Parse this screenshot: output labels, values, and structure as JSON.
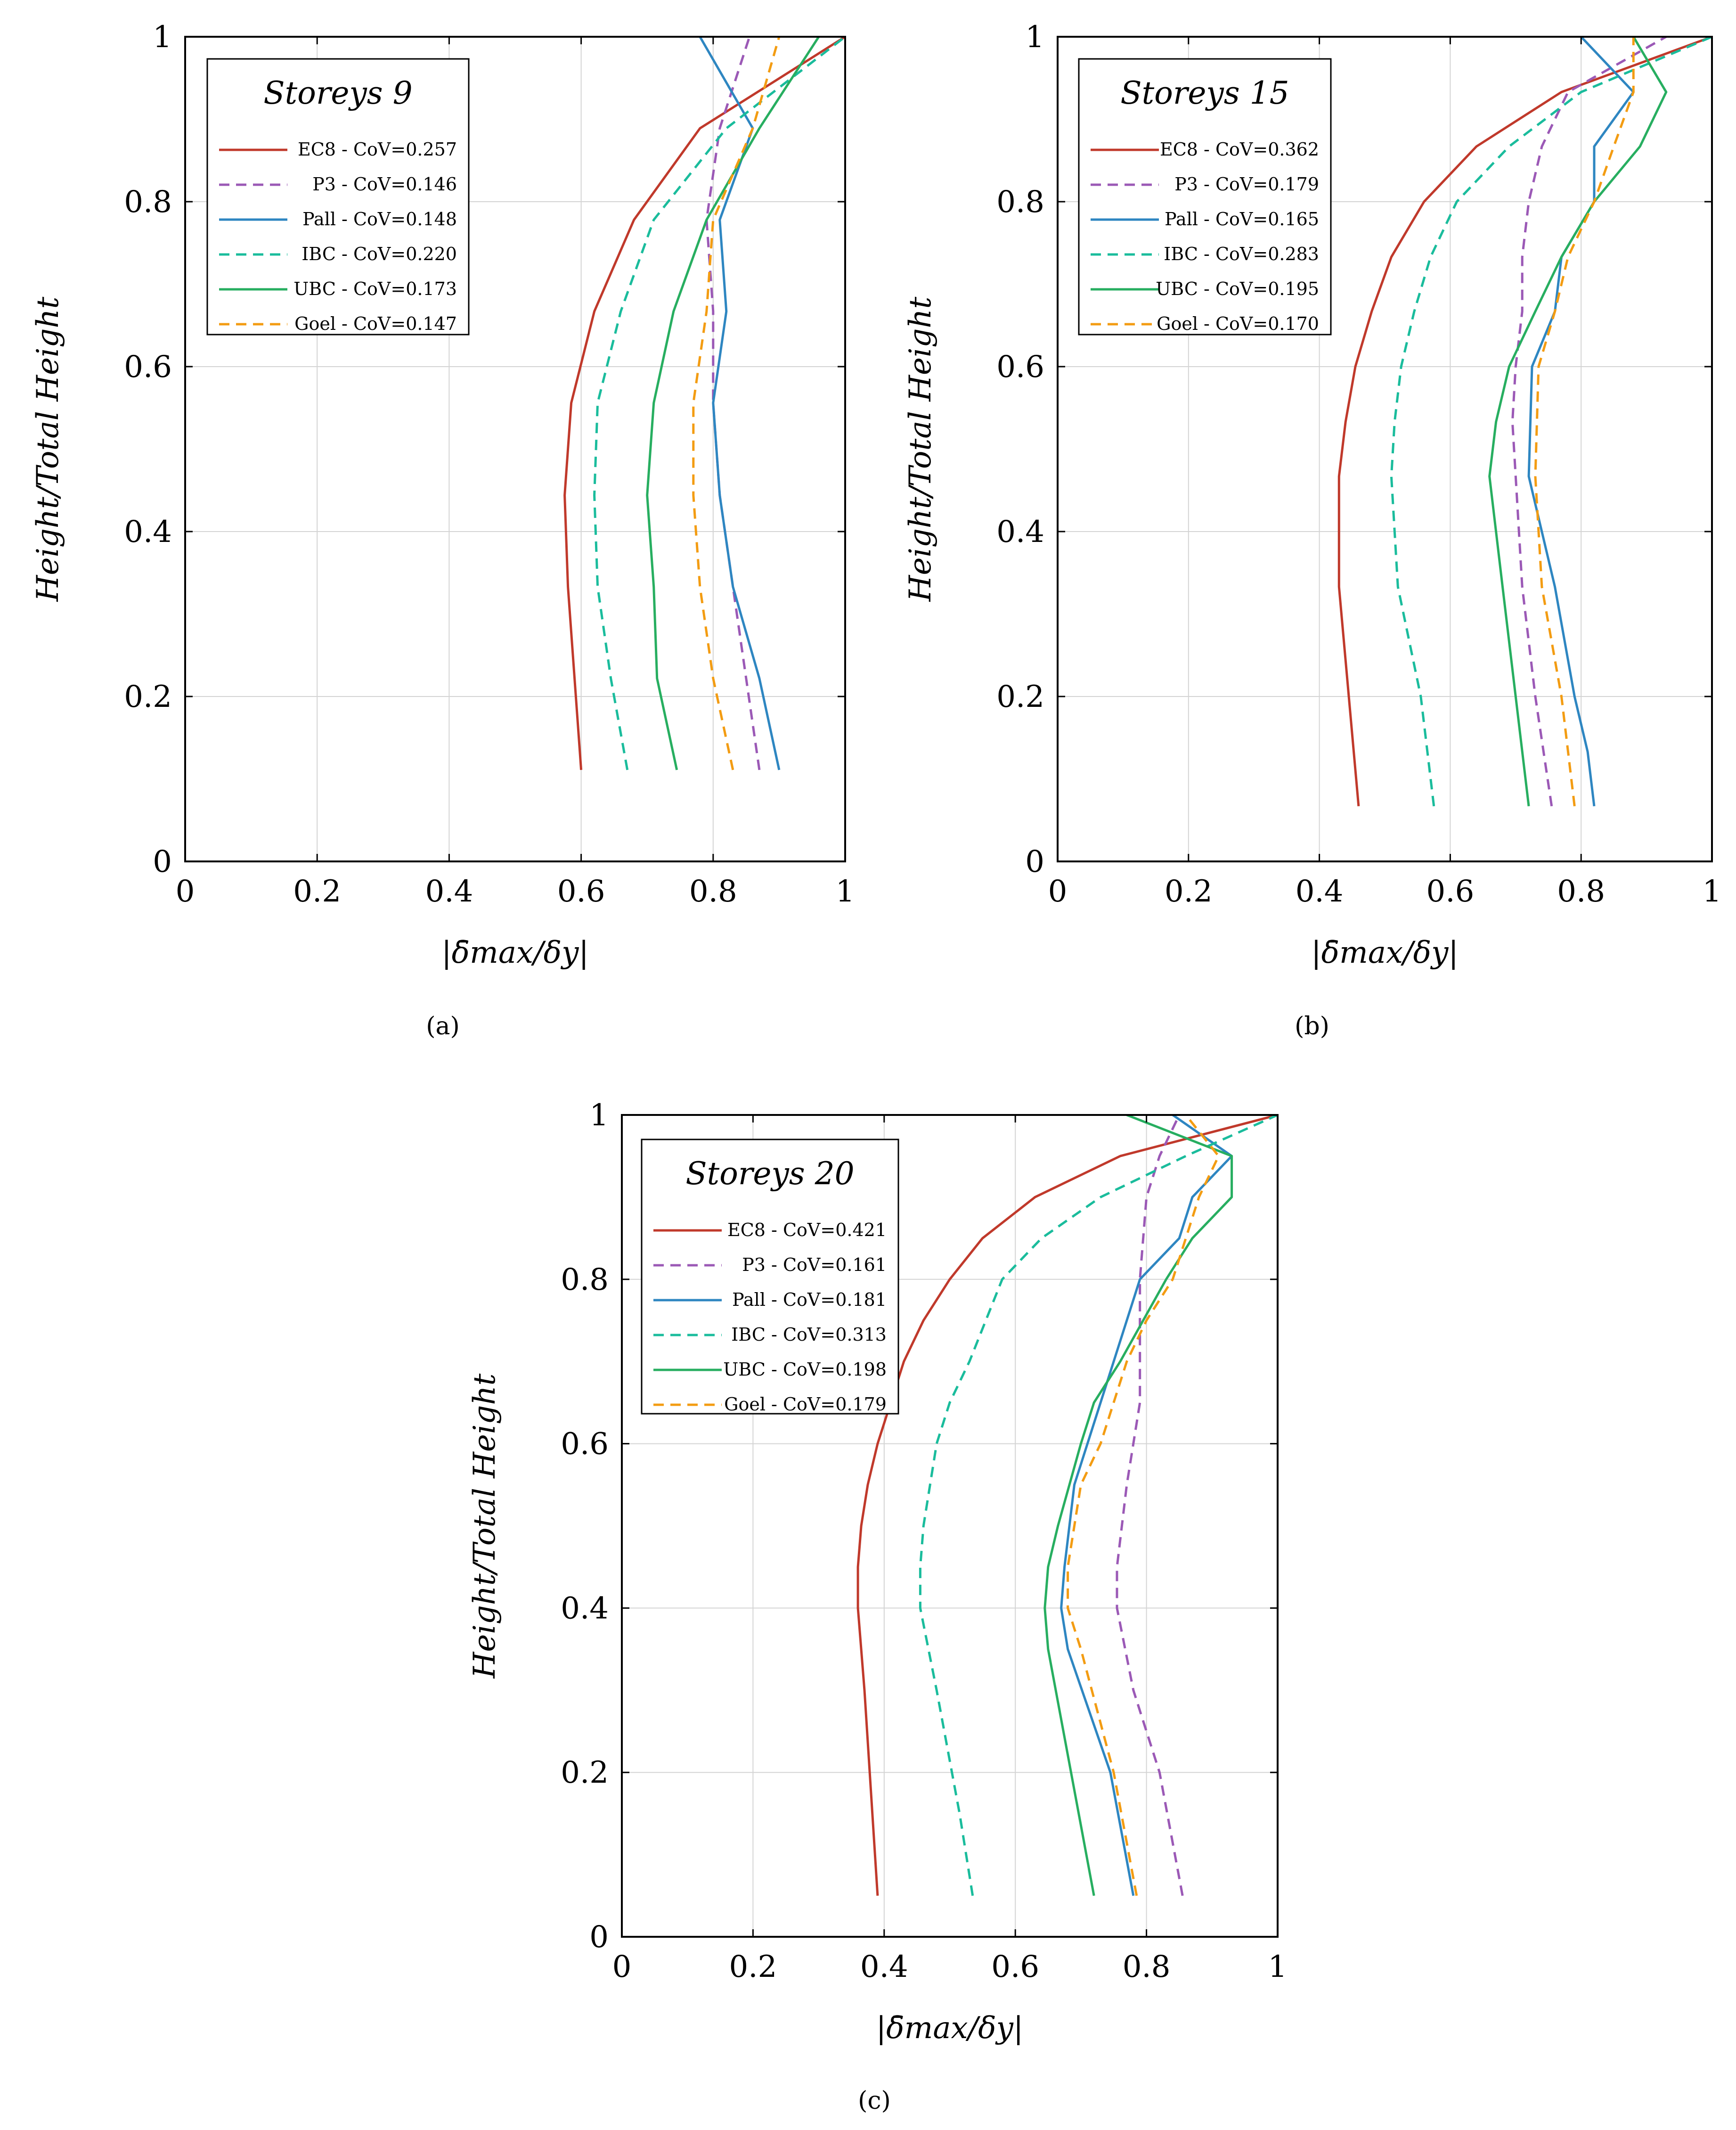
{
  "figure": {
    "y_axis_label": "Height/Total Height",
    "x_axis_label": "|δ̄max/δy|",
    "styles": {
      "EC8": {
        "color": "#c0392b",
        "dash": "solid"
      },
      "P3": {
        "color": "#9b59b6",
        "dash": "dashed"
      },
      "Pall": {
        "color": "#2e86c1",
        "dash": "solid"
      },
      "IBC": {
        "color": "#1abc9c",
        "dash": "dashed"
      },
      "UBC": {
        "color": "#27ae60",
        "dash": "solid"
      },
      "Goel": {
        "color": "#f39c12",
        "dash": "dashed"
      }
    }
  },
  "chart_data": [
    {
      "type": "line",
      "caption": "(a)",
      "title": "Storeys 9",
      "xlabel": "|δ̄max/δy|",
      "ylabel": "Height/Total Height",
      "xlim": [
        0,
        1
      ],
      "ylim": [
        0,
        1
      ],
      "xticks": [
        "0",
        "0.2",
        "0.4",
        "0.6",
        "0.8",
        "1"
      ],
      "yticks": [
        "0",
        "0.2",
        "0.4",
        "0.6",
        "0.8",
        "1"
      ],
      "grid": true,
      "legend": "top-left",
      "series": [
        {
          "key": "EC8",
          "name": "EC8 - CoV=0.257",
          "points": [
            [
              0.6,
              0.111
            ],
            [
              0.58,
              0.333
            ],
            [
              0.575,
              0.444
            ],
            [
              0.585,
              0.556
            ],
            [
              0.62,
              0.667
            ],
            [
              0.68,
              0.778
            ],
            [
              0.78,
              0.889
            ],
            [
              1.0,
              1.0
            ]
          ]
        },
        {
          "key": "P3",
          "name": "P3 - CoV=0.146",
          "points": [
            [
              0.87,
              0.111
            ],
            [
              0.85,
              0.222
            ],
            [
              0.83,
              0.333
            ],
            [
              0.81,
              0.444
            ],
            [
              0.8,
              0.556
            ],
            [
              0.8,
              0.667
            ],
            [
              0.79,
              0.778
            ],
            [
              0.81,
              0.889
            ],
            [
              0.855,
              1.0
            ]
          ]
        },
        {
          "key": "Pall",
          "name": "Pall - CoV=0.148",
          "points": [
            [
              0.9,
              0.111
            ],
            [
              0.87,
              0.222
            ],
            [
              0.83,
              0.333
            ],
            [
              0.81,
              0.444
            ],
            [
              0.8,
              0.556
            ],
            [
              0.82,
              0.667
            ],
            [
              0.81,
              0.778
            ],
            [
              0.86,
              0.889
            ],
            [
              0.78,
              1.0
            ]
          ]
        },
        {
          "key": "IBC",
          "name": "IBC - CoV=0.220",
          "points": [
            [
              0.67,
              0.111
            ],
            [
              0.645,
              0.222
            ],
            [
              0.625,
              0.333
            ],
            [
              0.62,
              0.444
            ],
            [
              0.625,
              0.556
            ],
            [
              0.66,
              0.667
            ],
            [
              0.71,
              0.778
            ],
            [
              0.82,
              0.889
            ],
            [
              1.0,
              1.0
            ]
          ]
        },
        {
          "key": "UBC",
          "name": "UBC - CoV=0.173",
          "points": [
            [
              0.745,
              0.111
            ],
            [
              0.715,
              0.222
            ],
            [
              0.71,
              0.333
            ],
            [
              0.7,
              0.444
            ],
            [
              0.71,
              0.556
            ],
            [
              0.74,
              0.667
            ],
            [
              0.79,
              0.778
            ],
            [
              0.87,
              0.889
            ],
            [
              0.96,
              1.0
            ]
          ]
        },
        {
          "key": "Goel",
          "name": "Goel - CoV=0.147",
          "points": [
            [
              0.83,
              0.111
            ],
            [
              0.8,
              0.222
            ],
            [
              0.78,
              0.333
            ],
            [
              0.77,
              0.444
            ],
            [
              0.77,
              0.556
            ],
            [
              0.79,
              0.667
            ],
            [
              0.8,
              0.778
            ],
            [
              0.86,
              0.889
            ],
            [
              0.9,
              1.0
            ]
          ]
        }
      ]
    },
    {
      "type": "line",
      "caption": "(b)",
      "title": "Storeys 15",
      "xlabel": "|δ̄max/δy|",
      "ylabel": "Height/Total Height",
      "xlim": [
        0,
        1
      ],
      "ylim": [
        0,
        1
      ],
      "xticks": [
        "0",
        "0.2",
        "0.4",
        "0.6",
        "0.8",
        "1"
      ],
      "yticks": [
        "0",
        "0.2",
        "0.4",
        "0.6",
        "0.8",
        "1"
      ],
      "grid": true,
      "legend": "top-left",
      "series": [
        {
          "key": "EC8",
          "name": "EC8 - CoV=0.362",
          "points": [
            [
              0.46,
              0.067
            ],
            [
              0.445,
              0.2
            ],
            [
              0.43,
              0.333
            ],
            [
              0.43,
              0.467
            ],
            [
              0.44,
              0.533
            ],
            [
              0.455,
              0.6
            ],
            [
              0.48,
              0.667
            ],
            [
              0.51,
              0.733
            ],
            [
              0.56,
              0.8
            ],
            [
              0.64,
              0.867
            ],
            [
              0.77,
              0.933
            ],
            [
              1.0,
              1.0
            ]
          ]
        },
        {
          "key": "P3",
          "name": "P3 - CoV=0.179",
          "points": [
            [
              0.755,
              0.067
            ],
            [
              0.73,
              0.2
            ],
            [
              0.71,
              0.333
            ],
            [
              0.7,
              0.467
            ],
            [
              0.695,
              0.533
            ],
            [
              0.7,
              0.6
            ],
            [
              0.71,
              0.667
            ],
            [
              0.71,
              0.733
            ],
            [
              0.72,
              0.8
            ],
            [
              0.74,
              0.867
            ],
            [
              0.78,
              0.933
            ],
            [
              0.93,
              1.0
            ]
          ]
        },
        {
          "key": "Pall",
          "name": "Pall - CoV=0.165",
          "points": [
            [
              0.82,
              0.067
            ],
            [
              0.81,
              0.133
            ],
            [
              0.79,
              0.2
            ],
            [
              0.76,
              0.333
            ],
            [
              0.72,
              0.467
            ],
            [
              0.725,
              0.6
            ],
            [
              0.76,
              0.667
            ],
            [
              0.77,
              0.733
            ],
            [
              0.82,
              0.8
            ],
            [
              0.82,
              0.867
            ],
            [
              0.88,
              0.933
            ],
            [
              0.8,
              1.0
            ]
          ]
        },
        {
          "key": "IBC",
          "name": "IBC - CoV=0.283",
          "points": [
            [
              0.575,
              0.067
            ],
            [
              0.555,
              0.2
            ],
            [
              0.52,
              0.333
            ],
            [
              0.51,
              0.467
            ],
            [
              0.515,
              0.533
            ],
            [
              0.525,
              0.6
            ],
            [
              0.545,
              0.667
            ],
            [
              0.57,
              0.733
            ],
            [
              0.61,
              0.8
            ],
            [
              0.69,
              0.867
            ],
            [
              0.8,
              0.933
            ],
            [
              1.0,
              1.0
            ]
          ]
        },
        {
          "key": "UBC",
          "name": "UBC - CoV=0.195",
          "points": [
            [
              0.72,
              0.067
            ],
            [
              0.68,
              0.333
            ],
            [
              0.66,
              0.467
            ],
            [
              0.67,
              0.533
            ],
            [
              0.69,
              0.6
            ],
            [
              0.73,
              0.667
            ],
            [
              0.77,
              0.733
            ],
            [
              0.82,
              0.8
            ],
            [
              0.89,
              0.867
            ],
            [
              0.93,
              0.933
            ],
            [
              0.88,
              1.0
            ]
          ]
        },
        {
          "key": "Goel",
          "name": "Goel - CoV=0.170",
          "points": [
            [
              0.79,
              0.067
            ],
            [
              0.77,
              0.2
            ],
            [
              0.74,
              0.333
            ],
            [
              0.73,
              0.467
            ],
            [
              0.735,
              0.6
            ],
            [
              0.76,
              0.667
            ],
            [
              0.78,
              0.733
            ],
            [
              0.82,
              0.8
            ],
            [
              0.85,
              0.867
            ],
            [
              0.88,
              0.933
            ],
            [
              0.88,
              1.0
            ]
          ]
        }
      ]
    },
    {
      "type": "line",
      "caption": "(c)",
      "title": "Storeys 20",
      "xlabel": "|δ̄max/δy|",
      "ylabel": "Height/Total Height",
      "xlim": [
        0,
        1
      ],
      "ylim": [
        0,
        1
      ],
      "xticks": [
        "0",
        "0.2",
        "0.4",
        "0.6",
        "0.8",
        "1"
      ],
      "yticks": [
        "0",
        "0.2",
        "0.4",
        "0.6",
        "0.8",
        "1"
      ],
      "grid": true,
      "legend": "top-left",
      "series": [
        {
          "key": "EC8",
          "name": "EC8 - CoV=0.421",
          "points": [
            [
              0.39,
              0.05
            ],
            [
              0.37,
              0.3
            ],
            [
              0.36,
              0.4
            ],
            [
              0.36,
              0.45
            ],
            [
              0.365,
              0.5
            ],
            [
              0.375,
              0.55
            ],
            [
              0.39,
              0.6
            ],
            [
              0.43,
              0.7
            ],
            [
              0.46,
              0.75
            ],
            [
              0.5,
              0.8
            ],
            [
              0.55,
              0.85
            ],
            [
              0.63,
              0.9
            ],
            [
              0.76,
              0.95
            ],
            [
              1.0,
              1.0
            ]
          ]
        },
        {
          "key": "P3",
          "name": "P3 - CoV=0.161",
          "points": [
            [
              0.855,
              0.05
            ],
            [
              0.82,
              0.2
            ],
            [
              0.78,
              0.3
            ],
            [
              0.755,
              0.4
            ],
            [
              0.755,
              0.45
            ],
            [
              0.77,
              0.55
            ],
            [
              0.79,
              0.65
            ],
            [
              0.79,
              0.7
            ],
            [
              0.79,
              0.75
            ],
            [
              0.79,
              0.8
            ],
            [
              0.8,
              0.9
            ],
            [
              0.82,
              0.95
            ],
            [
              0.85,
              1.0
            ]
          ]
        },
        {
          "key": "Pall",
          "name": "Pall - CoV=0.181",
          "points": [
            [
              0.78,
              0.05
            ],
            [
              0.745,
              0.2
            ],
            [
              0.68,
              0.35
            ],
            [
              0.67,
              0.4
            ],
            [
              0.675,
              0.45
            ],
            [
              0.69,
              0.55
            ],
            [
              0.75,
              0.7
            ],
            [
              0.79,
              0.8
            ],
            [
              0.85,
              0.85
            ],
            [
              0.87,
              0.9
            ],
            [
              0.93,
              0.95
            ],
            [
              0.84,
              1.0
            ]
          ]
        },
        {
          "key": "IBC",
          "name": "IBC - CoV=0.313",
          "points": [
            [
              0.535,
              0.05
            ],
            [
              0.515,
              0.15
            ],
            [
              0.48,
              0.3
            ],
            [
              0.455,
              0.4
            ],
            [
              0.455,
              0.45
            ],
            [
              0.46,
              0.5
            ],
            [
              0.48,
              0.6
            ],
            [
              0.5,
              0.65
            ],
            [
              0.53,
              0.7
            ],
            [
              0.58,
              0.8
            ],
            [
              0.64,
              0.85
            ],
            [
              0.73,
              0.9
            ],
            [
              0.86,
              0.95
            ],
            [
              1.0,
              1.0
            ]
          ]
        },
        {
          "key": "UBC",
          "name": "UBC - CoV=0.198",
          "points": [
            [
              0.72,
              0.05
            ],
            [
              0.685,
              0.2
            ],
            [
              0.65,
              0.35
            ],
            [
              0.645,
              0.4
            ],
            [
              0.65,
              0.45
            ],
            [
              0.665,
              0.5
            ],
            [
              0.7,
              0.6
            ],
            [
              0.72,
              0.65
            ],
            [
              0.76,
              0.7
            ],
            [
              0.83,
              0.8
            ],
            [
              0.87,
              0.85
            ],
            [
              0.93,
              0.9
            ],
            [
              0.93,
              0.95
            ],
            [
              0.77,
              1.0
            ]
          ]
        },
        {
          "key": "Goel",
          "name": "Goel - CoV=0.179",
          "points": [
            [
              0.785,
              0.05
            ],
            [
              0.75,
              0.2
            ],
            [
              0.7,
              0.35
            ],
            [
              0.68,
              0.4
            ],
            [
              0.68,
              0.45
            ],
            [
              0.69,
              0.5
            ],
            [
              0.7,
              0.55
            ],
            [
              0.73,
              0.6
            ],
            [
              0.77,
              0.7
            ],
            [
              0.8,
              0.75
            ],
            [
              0.84,
              0.8
            ],
            [
              0.88,
              0.9
            ],
            [
              0.91,
              0.95
            ],
            [
              0.86,
              1.0
            ]
          ]
        }
      ]
    }
  ]
}
